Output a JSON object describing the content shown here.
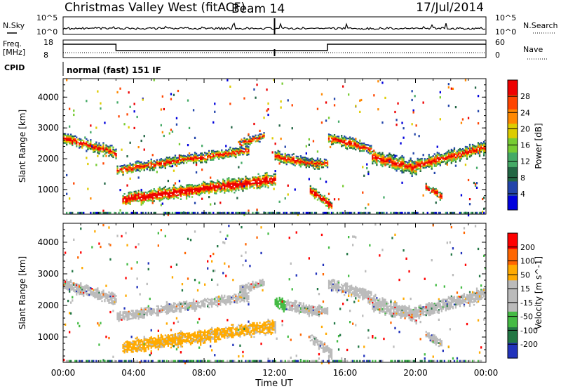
{
  "header": {
    "title": "Christmas Valley West (fitACF)",
    "beam": "Beam 14",
    "date": "17/Jul/2014"
  },
  "labels": {
    "nsky": "N.Sky",
    "nsearch": "N.Search",
    "freq_line1": "Freq.",
    "freq_line2": "[MHz]",
    "nave": "Nave",
    "cpid": "CPID",
    "cpid_value": "normal (fast) 151 IF",
    "noise_tick_top": "10^5",
    "noise_tick_bottom": "10^0",
    "freq_tick_top": "18",
    "freq_tick_bottom": "8",
    "nave_tick_top": "60",
    "nave_tick_bottom": "0"
  },
  "colors": {
    "power_scale": [
      "#0000dd",
      "#2244aa",
      "#226644",
      "#44aa66",
      "#77cc33",
      "#ddcc00",
      "#ff8800",
      "#ff4400",
      "#ee0000"
    ],
    "velocity_scale": [
      "#2233bb",
      "#227744",
      "#44bb44",
      "#bbbbbb",
      "#bbbbbb",
      "#ffaa00",
      "#ff6600",
      "#ff0000"
    ]
  },
  "chart_data": [
    {
      "type": "heatmap",
      "title": "Power",
      "xlabel": "Time UT",
      "ylabel": "Slant Range [km]",
      "x_ticks": [
        "00:00",
        "04:00",
        "08:00",
        "12:00",
        "16:00",
        "20:00",
        "00:00"
      ],
      "y_ticks": [
        1000,
        2000,
        3000,
        4000
      ],
      "ylim": [
        200,
        4600
      ],
      "xlim_hours": [
        0,
        24
      ],
      "colorbar_label": "Power [dB]",
      "colorbar_ticks": [
        4,
        8,
        12,
        16,
        20,
        24,
        28
      ]
    },
    {
      "type": "heatmap",
      "title": "Velocity",
      "xlabel": "Time UT",
      "ylabel": "Slant Range [km]",
      "x_ticks": [
        "00:00",
        "04:00",
        "08:00",
        "12:00",
        "16:00",
        "20:00",
        "00:00"
      ],
      "y_ticks": [
        1000,
        2000,
        3000,
        4000
      ],
      "ylim": [
        200,
        4600
      ],
      "xlim_hours": [
        0,
        24
      ],
      "colorbar_label": "Velocity [m s^-1]",
      "colorbar_ticks": [
        200,
        100,
        50,
        15,
        -15,
        -50,
        -100,
        -200
      ]
    }
  ]
}
